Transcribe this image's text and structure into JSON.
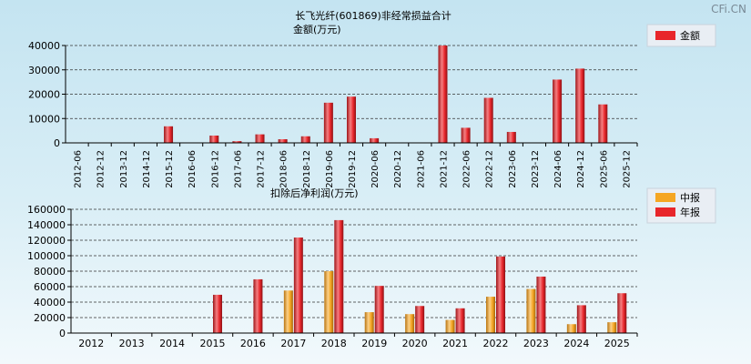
{
  "watermark": "CFi.CN",
  "colors": {
    "bar_red": "#e8262b",
    "bar_red_dark": "#9e1418",
    "bar_red_light": "#f57f82",
    "bar_orange": "#f5a623",
    "bar_orange_dark": "#b9740f",
    "bar_orange_light": "#fbd089",
    "legend_bg": "#e9eef4"
  },
  "chart_data": [
    {
      "type": "bar",
      "title": "长飞光纤(601869)非经常损益合计",
      "subtitle": "金额(万元)",
      "legend_position": "top-right",
      "grid": true,
      "categories": [
        "2012-06",
        "2012-12",
        "2013-12",
        "2014-12",
        "2015-12",
        "2016-06",
        "2016-12",
        "2017-06",
        "2017-12",
        "2018-06",
        "2018-12",
        "2019-06",
        "2019-12",
        "2020-06",
        "2020-12",
        "2021-06",
        "2021-12",
        "2022-06",
        "2022-12",
        "2023-06",
        "2023-12",
        "2024-06",
        "2024-12",
        "2025-06",
        "2025-12"
      ],
      "ylim": [
        0,
        40000
      ],
      "yticks": [
        0,
        10000,
        20000,
        30000,
        40000
      ],
      "series": [
        {
          "name": "金额",
          "color": "red",
          "values": [
            null,
            null,
            null,
            null,
            6800,
            null,
            3000,
            700,
            3500,
            1500,
            2700,
            16500,
            19000,
            1900,
            null,
            null,
            40000,
            6200,
            18500,
            4500,
            null,
            26000,
            30500,
            15800,
            null
          ]
        }
      ]
    },
    {
      "type": "bar",
      "title": "扣除后净利润(万元)",
      "legend_position": "top-right",
      "grid": true,
      "categories": [
        "2012",
        "2013",
        "2014",
        "2015",
        "2016",
        "2017",
        "2018",
        "2019",
        "2020",
        "2021",
        "2022",
        "2023",
        "2024",
        "2025"
      ],
      "ylim": [
        0,
        160000
      ],
      "yticks": [
        0,
        20000,
        40000,
        60000,
        80000,
        100000,
        120000,
        140000,
        160000
      ],
      "series": [
        {
          "name": "中报",
          "color": "orange",
          "values": [
            null,
            null,
            null,
            null,
            null,
            55000,
            80000,
            27000,
            24500,
            17000,
            47000,
            57000,
            11500,
            14000
          ]
        },
        {
          "name": "年报",
          "color": "red",
          "values": [
            null,
            null,
            null,
            49500,
            69500,
            123500,
            146000,
            61000,
            35000,
            32000,
            99000,
            73000,
            36000,
            51500
          ]
        }
      ]
    }
  ]
}
